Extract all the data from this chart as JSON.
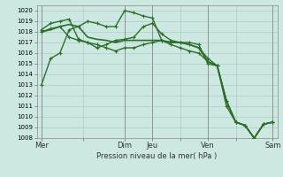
{
  "background_color": "#cce8e0",
  "grid_color": "#aacccc",
  "line_color": "#2d6e2d",
  "marker_color": "#2d6e2d",
  "xlabel": "Pression niveau de la mer( hPa )",
  "ylim": [
    1008,
    1020.5
  ],
  "yticks": [
    1008,
    1009,
    1010,
    1011,
    1012,
    1013,
    1014,
    1015,
    1016,
    1017,
    1018,
    1019,
    1020
  ],
  "day_labels": [
    "Mer",
    "",
    "Dim",
    "Jeu",
    "",
    "Ven",
    "",
    "Sam"
  ],
  "day_positions": [
    0,
    4.5,
    9,
    12,
    15,
    18,
    21,
    25
  ],
  "vline_positions": [
    0,
    9,
    12,
    18,
    25
  ],
  "n_points": 26,
  "series": [
    {
      "y": [
        1013.0,
        1015.5,
        1016.0,
        1018.2,
        1018.5,
        1019.0,
        1018.8,
        1018.5,
        1018.5,
        1020.0,
        1019.8,
        1019.5,
        1019.3,
        1017.2,
        1017.0,
        1017.0,
        1017.0,
        1016.8,
        1015.0,
        1014.8,
        1011.0,
        1009.5,
        1009.2,
        1008.0,
        1009.3,
        1009.5
      ],
      "marker": "+",
      "lw": 1.0,
      "ms": 3.5
    },
    {
      "y": [
        1018.0,
        1018.2,
        1018.5,
        1018.7,
        1018.5,
        1017.5,
        1017.3,
        1017.2,
        1017.0,
        1017.2,
        1017.2,
        1017.2,
        1017.2,
        1017.2,
        1017.0,
        1017.0,
        1016.8,
        1016.5,
        1015.2,
        1014.8,
        1011.5,
        1009.5,
        1009.2,
        1008.0,
        1009.3,
        1009.5
      ],
      "marker": "None",
      "lw": 1.2,
      "ms": 0
    },
    {
      "y": [
        1018.2,
        1018.8,
        1019.0,
        1019.2,
        1017.3,
        1017.0,
        1016.5,
        1016.8,
        1017.2,
        1017.3,
        1017.5,
        1018.5,
        1018.8,
        1017.8,
        1017.2,
        1017.0,
        1016.8,
        1016.5,
        1015.5,
        1014.8,
        1011.5,
        1009.5,
        1009.2,
        1008.0,
        1009.3,
        1009.5
      ],
      "marker": "+",
      "lw": 1.0,
      "ms": 3.5
    },
    {
      "y": [
        1018.0,
        1018.3,
        1018.5,
        1017.5,
        1017.2,
        1017.0,
        1016.8,
        1016.5,
        1016.2,
        1016.5,
        1016.5,
        1016.8,
        1017.0,
        1017.2,
        1016.8,
        1016.5,
        1016.2,
        1016.0,
        1015.2,
        1014.8,
        1011.5,
        1009.5,
        1009.2,
        1008.0,
        1009.3,
        1009.5
      ],
      "marker": "+",
      "lw": 1.0,
      "ms": 3.5
    }
  ]
}
